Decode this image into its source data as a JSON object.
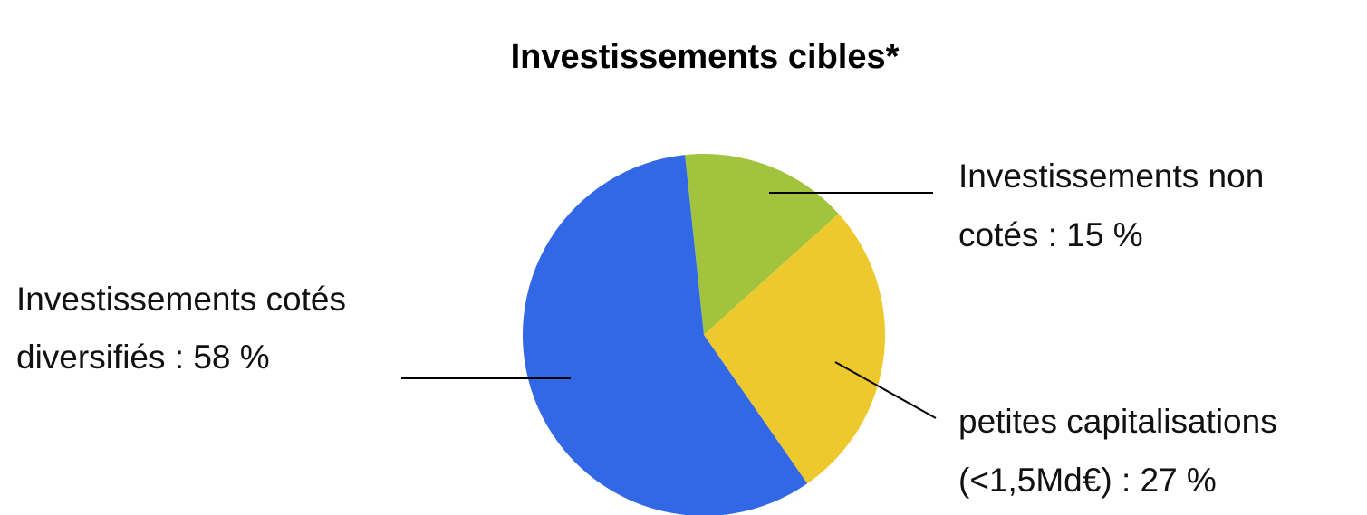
{
  "chart_data": {
    "type": "pie",
    "title": "Investissements cibles*",
    "start_angle_deg": -6,
    "direction": "clockwise",
    "slices": [
      {
        "name": "Investissements non cotés",
        "value": 15,
        "color": "#a2c33e",
        "label_lines": [
          "Investissements non",
          "cotés : 15 %"
        ]
      },
      {
        "name": "petites capitalisations (<1,5Md€)",
        "value": 27,
        "color": "#eec92d",
        "label_lines": [
          "petites capitalisations",
          "(<1,5Md€) : 27 %"
        ]
      },
      {
        "name": "Investissements cotés diversifiés",
        "value": 58,
        "color": "#3267e6",
        "label_lines": [
          "Investissements cotés",
          "diversifiés : 58 %"
        ]
      }
    ]
  }
}
